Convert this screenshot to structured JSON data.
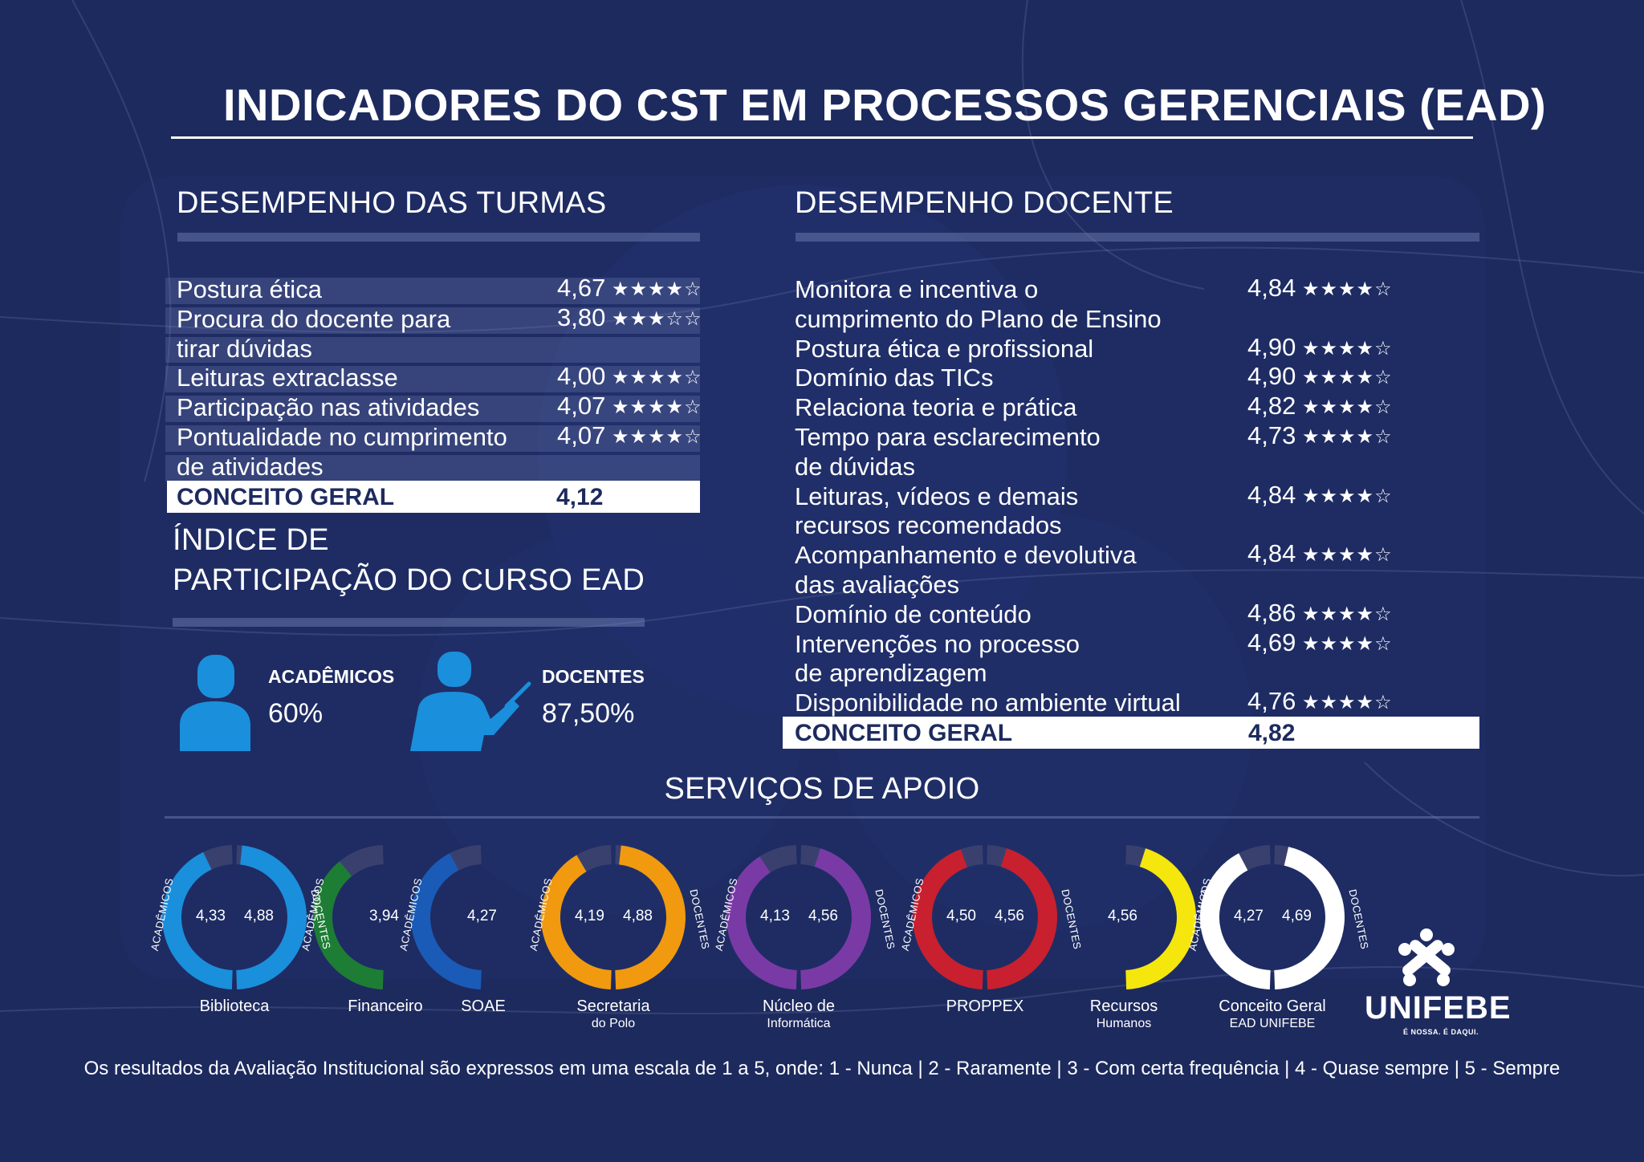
{
  "colors": {
    "background": "#1d2a5e",
    "accent_blue": "#1a8fdc",
    "donut_track": "#3a406e",
    "biblioteca": "#1a8fdc",
    "financeiro": "#1d7d34",
    "soae": "#1a5bb8",
    "secretaria": "#f19a0f",
    "nucleo": "#7a3aa6",
    "proppex": "#c8202e",
    "recursos": "#f5e60e",
    "conceito": "#ffffff"
  },
  "header": {
    "title": "INDICADORES DO CST EM PROCESSOS GERENCIAIS (EAD)"
  },
  "turmas": {
    "section_title": "DESEMPENHO DAS TURMAS",
    "rows": [
      {
        "lines": [
          "Postura ética"
        ],
        "value": "4,67",
        "stars": 4
      },
      {
        "lines": [
          "Procura do docente para",
          "tirar dúvidas"
        ],
        "value": "3,80",
        "stars": 3
      },
      {
        "lines": [
          "Leituras extraclasse"
        ],
        "value": "4,00",
        "stars": 4
      },
      {
        "lines": [
          "Participação nas atividades"
        ],
        "value": "4,07",
        "stars": 4
      },
      {
        "lines": [
          "Pontualidade no cumprimento",
          "de atividades"
        ],
        "value": "4,07",
        "stars": 4
      }
    ],
    "total_label": "CONCEITO GERAL",
    "total_value": "4,12"
  },
  "participacao": {
    "title_line1": "ÍNDICE DE",
    "title_line2": "PARTICIPAÇÃO DO CURSO EAD",
    "academicos_label": "ACADÊMICOS",
    "academicos_value": "60%",
    "academicos_icon": "person-icon",
    "docentes_label": "DOCENTES",
    "docentes_value": "87,50%",
    "docentes_icon": "teacher-icon"
  },
  "docente": {
    "section_title": "DESEMPENHO DOCENTE",
    "rows": [
      {
        "lines": [
          "Monitora e incentiva o",
          "cumprimento do Plano de Ensino"
        ],
        "value": "4,84",
        "stars": 4
      },
      {
        "lines": [
          "Postura ética e profissional"
        ],
        "value": "4,90",
        "stars": 4
      },
      {
        "lines": [
          "Domínio das TICs"
        ],
        "value": "4,90",
        "stars": 4
      },
      {
        "lines": [
          "Relaciona teoria e prática"
        ],
        "value": "4,82",
        "stars": 4
      },
      {
        "lines": [
          "Tempo para esclarecimento",
          "de dúvidas"
        ],
        "value": "4,73",
        "stars": 4
      },
      {
        "lines": [
          "Leituras, vídeos e demais",
          "recursos recomendados"
        ],
        "value": "4,84",
        "stars": 4
      },
      {
        "lines": [
          "Acompanhamento e devolutiva",
          "das avaliações"
        ],
        "value": "4,84",
        "stars": 4
      },
      {
        "lines": [
          "Domínio de conteúdo"
        ],
        "value": "4,86",
        "stars": 4
      },
      {
        "lines": [
          "Intervenções no processo",
          "de aprendizagem"
        ],
        "value": "4,69",
        "stars": 4
      },
      {
        "lines": [
          "Disponibilidade no ambiente virtual"
        ],
        "value": "4,76",
        "stars": 4
      }
    ],
    "total_label": "CONCEITO GERAL",
    "total_value": "4,82"
  },
  "servicos": {
    "section_title": "SERVIÇOS DE APOIO",
    "side_left": "ACADÊMICOS",
    "side_right": "DOCENTES",
    "items": [
      {
        "key": "biblioteca",
        "caption": "Biblioteca",
        "caption2": "",
        "left": "4,33",
        "right": "4,88",
        "left_score": 4.33,
        "right_score": 4.88,
        "color": "#1a8fdc",
        "mode": "both"
      },
      {
        "key": "financeiro",
        "caption": "Financeiro",
        "caption2": "",
        "left": "3,94",
        "right": "",
        "left_score": 3.94,
        "right_score": 0,
        "color": "#1d7d34",
        "mode": "left"
      },
      {
        "key": "soae",
        "caption": "SOAE",
        "caption2": "",
        "left": "4,27",
        "right": "",
        "left_score": 4.27,
        "right_score": 0,
        "color": "#1a5bb8",
        "mode": "left"
      },
      {
        "key": "secretaria",
        "caption": "Secretaria",
        "caption2": "do Polo",
        "left": "4,19",
        "right": "4,88",
        "left_score": 4.19,
        "right_score": 4.88,
        "color": "#f19a0f",
        "mode": "both"
      },
      {
        "key": "nucleo",
        "caption": "Núcleo de",
        "caption2": "Informática",
        "left": "4,13",
        "right": "4,56",
        "left_score": 4.13,
        "right_score": 4.56,
        "color": "#7a3aa6",
        "mode": "both"
      },
      {
        "key": "proppex",
        "caption": "PROPPEX",
        "caption2": "",
        "left": "4,50",
        "right": "4,56",
        "left_score": 4.5,
        "right_score": 4.56,
        "color": "#c8202e",
        "mode": "both"
      },
      {
        "key": "recursos",
        "caption": "Recursos",
        "caption2": "Humanos",
        "left": "",
        "right": "4,56",
        "left_score": 0,
        "right_score": 4.56,
        "color": "#f5e60e",
        "mode": "right"
      },
      {
        "key": "conceito",
        "caption": "Conceito Geral",
        "caption2": "EAD UNIFEBE",
        "left": "4,27",
        "right": "4,69",
        "left_score": 4.27,
        "right_score": 4.69,
        "color": "#ffffff",
        "mode": "both"
      }
    ]
  },
  "footer": {
    "note": "Os resultados da Avaliação Institucional são expressos em uma escala de 1 a 5, onde: 1 - Nunca | 2 - Raramente | 3 - Com certa frequência | 4 - Quase sempre | 5 - Sempre"
  },
  "brand": {
    "name": "UNIFEBE",
    "tagline": "É NOSSA. É DAQUI.",
    "logo_icon": "unifebe-logo-icon"
  }
}
